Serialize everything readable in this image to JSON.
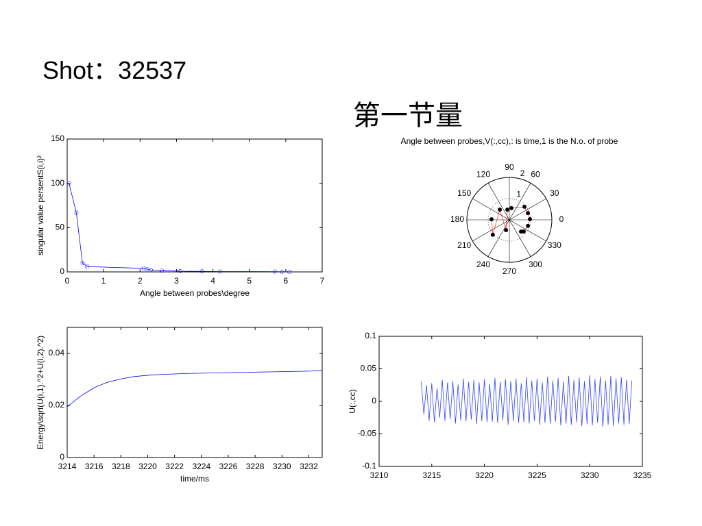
{
  "slide": {
    "title": "Shot：32537",
    "subtitle": "第一节量"
  },
  "chart_data": [
    {
      "type": "line",
      "markers": true,
      "xlabel": "Angle between probes\\degree",
      "ylabel": "singular value persentS(i,i)²",
      "x": [
        0.05,
        0.25,
        0.42,
        0.55,
        2.1,
        2.2,
        2.3,
        2.6,
        3.1,
        3.7,
        4.2,
        5.7,
        5.9,
        6.1
      ],
      "series": [
        {
          "color": "#0000ff",
          "values": [
            100,
            67,
            10,
            6,
            4,
            3,
            2,
            1.5,
            0.8,
            0.6,
            0.4,
            0.3,
            0.2,
            0.1
          ]
        }
      ],
      "xlim": [
        0,
        7
      ],
      "xticks": [
        0,
        1,
        2,
        3,
        4,
        5,
        6,
        7
      ],
      "ylim": [
        0,
        150
      ],
      "yticks": [
        0,
        50,
        100,
        150
      ]
    },
    {
      "type": "polar",
      "title": "Angle between probes,V(:,cc),: is time,1 is the N.o. of probe",
      "theta": [
        178,
        222,
        133,
        252,
        101,
        80,
        41,
        20,
        2,
        342,
        321,
        315
      ],
      "r": [
        0.84,
        1.05,
        0.66,
        0.51,
        0.49,
        0.56,
        0.94,
        0.93,
        0.97,
        0.92,
        0.87,
        0.78
      ],
      "color": "#000000",
      "line_color": "#ff0000",
      "rlim": [
        0,
        2
      ],
      "rticks": [
        1,
        2
      ],
      "thetaticks": [
        0,
        30,
        60,
        90,
        120,
        150,
        180,
        210,
        240,
        270,
        300,
        330
      ]
    },
    {
      "type": "line",
      "markers": false,
      "xlabel": "time/ms",
      "ylabel": "Energy\\sqrt(U(i,1).^2+U(i,2).^2)",
      "x": [
        3214,
        3215,
        3216,
        3217,
        3218,
        3219,
        3220,
        3221,
        3222,
        3223,
        3224,
        3225,
        3226,
        3227,
        3228,
        3229,
        3230,
        3231,
        3232,
        3233
      ],
      "series": [
        {
          "color": "#0000ff",
          "values": [
            0.0195,
            0.0236,
            0.0268,
            0.0289,
            0.0302,
            0.0311,
            0.0316,
            0.0319,
            0.0321,
            0.0323,
            0.0324,
            0.0325,
            0.0326,
            0.0327,
            0.0328,
            0.0329,
            0.033,
            0.0331,
            0.0332,
            0.0334
          ]
        }
      ],
      "xlim": [
        3214,
        3233
      ],
      "xticks": [
        3214,
        3216,
        3218,
        3220,
        3222,
        3224,
        3226,
        3228,
        3230,
        3232
      ],
      "ylim": [
        0,
        0.05
      ],
      "yticks": [
        0,
        0.02,
        0.04
      ]
    },
    {
      "type": "line",
      "markers": false,
      "ylabel": "U(:,cc)",
      "x": [
        3214,
        3214.25,
        3214.5,
        3214.75,
        3215,
        3215.25,
        3215.5,
        3215.75,
        3216,
        3216.25,
        3216.5,
        3216.75,
        3217,
        3217.25,
        3217.5,
        3217.75,
        3218,
        3218.25,
        3218.5,
        3218.75,
        3219,
        3219.25,
        3219.5,
        3219.75,
        3220,
        3220.25,
        3220.5,
        3220.75,
        3221,
        3221.25,
        3221.5,
        3221.75,
        3222,
        3222.25,
        3222.5,
        3222.75,
        3223,
        3223.25,
        3223.5,
        3223.75,
        3224,
        3224.25,
        3224.5,
        3224.75,
        3225,
        3225.25,
        3225.5,
        3225.75,
        3226,
        3226.25,
        3226.5,
        3226.75,
        3227,
        3227.25,
        3227.5,
        3227.75,
        3228,
        3228.25,
        3228.5,
        3228.75,
        3229,
        3229.25,
        3229.5,
        3229.75,
        3230,
        3230.25,
        3230.5,
        3230.75,
        3231,
        3231.25,
        3231.5,
        3231.75,
        3232,
        3232.25,
        3232.5,
        3232.75,
        3233,
        3233.25,
        3233.5,
        3233.75,
        3234
      ],
      "series": [
        {
          "color": "#3344ff",
          "values": [
            0.03,
            -0.02,
            0.025,
            -0.03,
            0.028,
            -0.032,
            0.02,
            -0.025,
            0.033,
            -0.03,
            0.029,
            -0.027,
            0.031,
            -0.034,
            0.026,
            -0.029,
            0.035,
            -0.031,
            0.03,
            -0.028,
            0.033,
            -0.035,
            0.029,
            -0.03,
            0.034,
            -0.032,
            0.027,
            -0.031,
            0.036,
            -0.033,
            0.03,
            -0.029,
            0.034,
            -0.036,
            0.031,
            -0.03,
            0.035,
            -0.033,
            0.028,
            -0.032,
            0.037,
            -0.034,
            0.032,
            -0.03,
            0.035,
            -0.036,
            0.029,
            -0.033,
            0.038,
            -0.035,
            0.032,
            -0.031,
            0.036,
            -0.037,
            0.03,
            -0.034,
            0.039,
            -0.036,
            0.033,
            -0.032,
            0.037,
            -0.038,
            0.031,
            -0.035,
            0.04,
            -0.037,
            0.034,
            -0.033,
            0.038,
            -0.039,
            0.032,
            -0.036,
            0.039,
            -0.038,
            0.035,
            -0.034,
            0.037,
            -0.036,
            0.033,
            -0.035,
            0.032
          ]
        }
      ],
      "xlim": [
        3210,
        3235
      ],
      "xticks": [
        3210,
        3215,
        3220,
        3225,
        3230,
        3235
      ],
      "ylim": [
        -0.1,
        0.1
      ],
      "yticks": [
        -0.1,
        -0.05,
        0,
        0.05,
        0.1
      ]
    }
  ]
}
